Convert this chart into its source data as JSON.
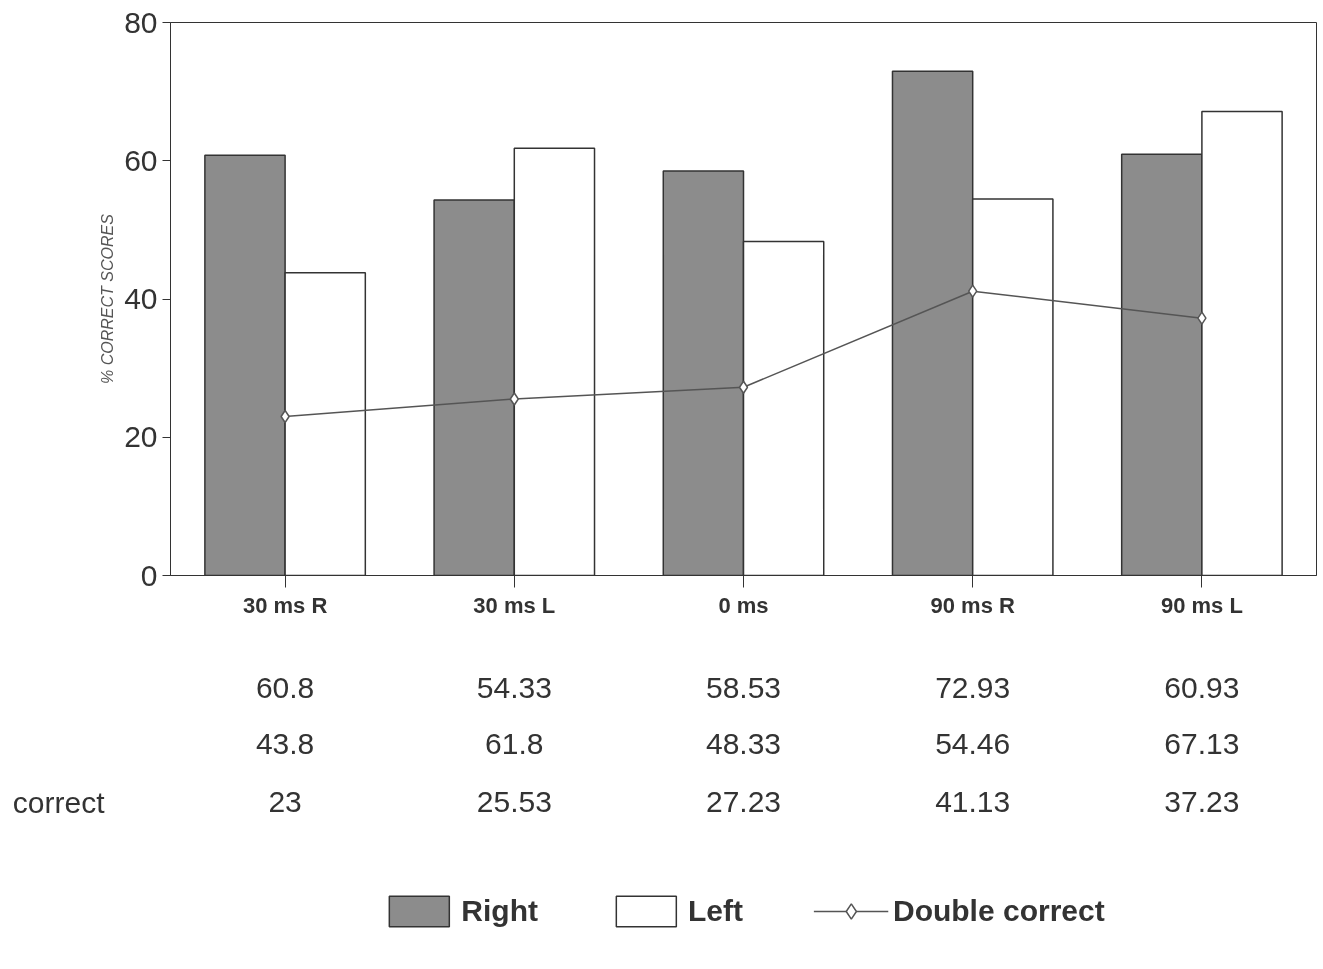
{
  "chart_data": {
    "type": "bar",
    "ylabel": "% CORRECT SCORES",
    "categories": [
      "30 ms R",
      "30 ms L",
      "0 ms",
      "90 ms R",
      "90 ms L"
    ],
    "series": [
      {
        "name": "Right",
        "color": "#8c8c8c",
        "values": [
          60.8,
          54.33,
          58.53,
          72.93,
          60.93
        ]
      },
      {
        "name": "Left",
        "color": "#ffffff",
        "values": [
          43.8,
          61.8,
          48.33,
          54.46,
          67.13
        ]
      },
      {
        "name": "Double correct",
        "type": "line",
        "color": "#555555",
        "values": [
          23,
          25.53,
          27.23,
          41.13,
          37.23
        ]
      }
    ],
    "ylim": [
      0,
      80
    ],
    "yticks": [
      0,
      20,
      40,
      60,
      80
    ],
    "grid": false,
    "legend": "bottom",
    "marker": "diamond",
    "data_labels": true,
    "annotations": [
      "correct"
    ]
  }
}
